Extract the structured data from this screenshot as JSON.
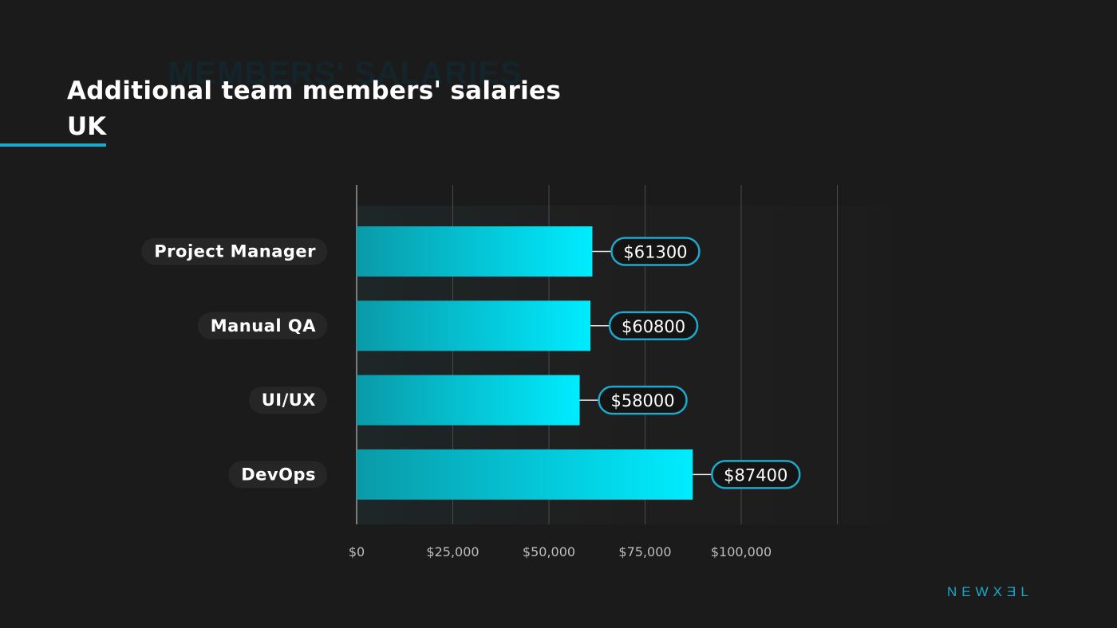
{
  "header": {
    "background_text": "MEMBERS' SALARIES",
    "title": "Additional team members' salaries",
    "subtitle": "UK"
  },
  "brand": {
    "logo_text": "NEWXƎL"
  },
  "colors": {
    "background": "#1b1b1b",
    "accent": "#1ea8c9",
    "bar_start": "#0a9aa8",
    "bar_end": "#00ecff",
    "text": "#ffffff",
    "tick_text": "#bdbdbd"
  },
  "chart_data": {
    "type": "bar",
    "orientation": "horizontal",
    "categories": [
      "Project Manager",
      "Manual QA",
      "UI/UX",
      "DevOps"
    ],
    "values": [
      61300,
      60800,
      58000,
      87400
    ],
    "data_labels": [
      "$61300",
      "$60800",
      "$58000",
      "$87400"
    ],
    "x_ticks": [
      0,
      25000,
      50000,
      75000,
      100000,
      125000
    ],
    "x_tick_labels": [
      "$0",
      "$25,000",
      "$50,000",
      "$75,000",
      "$100,000",
      ""
    ],
    "xlim": [
      0,
      125000
    ],
    "grid": true,
    "legend": "none"
  }
}
